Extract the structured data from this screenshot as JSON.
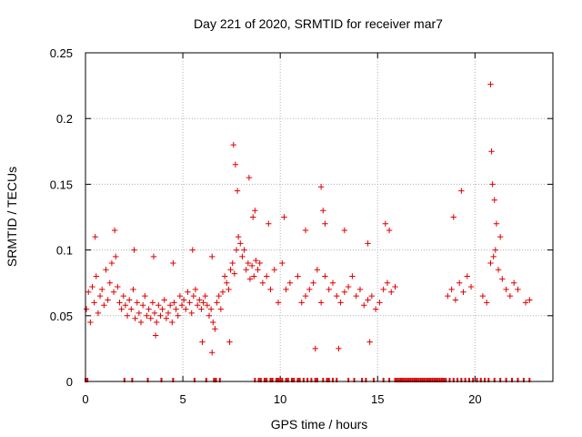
{
  "chart_data": {
    "type": "scatter",
    "title": "Day 221 of 2020, SRMTID for receiver mar7",
    "xlabel": "GPS time / hours",
    "ylabel": "SRMTID / TECUs",
    "xlim": [
      0,
      24
    ],
    "ylim": [
      0,
      0.25
    ],
    "xticks": [
      0,
      5,
      10,
      15,
      20
    ],
    "yticks": [
      0,
      0.05,
      0.1,
      0.15,
      0.2,
      0.25
    ],
    "xtick_labels": [
      "0",
      "5",
      "10",
      "15",
      "20"
    ],
    "ytick_labels": [
      "0",
      "0.05",
      "0.1",
      "0.15",
      "0.2",
      "0.25"
    ],
    "grid": true,
    "marker": "+",
    "color": "#e00000",
    "series": [
      {
        "name": "SRMTID",
        "x": [
          0.05,
          0.15,
          0.25,
          0.35,
          0.45,
          0.55,
          0.65,
          0.75,
          0.85,
          0.95,
          1.05,
          1.15,
          1.25,
          1.35,
          1.45,
          1.55,
          1.65,
          1.75,
          1.85,
          1.95,
          2.05,
          2.15,
          2.25,
          2.35,
          2.45,
          2.55,
          2.65,
          2.75,
          2.85,
          2.95,
          3.05,
          3.15,
          3.25,
          3.35,
          3.45,
          3.55,
          3.65,
          3.75,
          3.85,
          3.95,
          4.05,
          4.15,
          4.25,
          4.35,
          4.45,
          4.55,
          4.65,
          4.75,
          4.85,
          4.95,
          5.05,
          5.15,
          5.25,
          5.35,
          5.45,
          5.55,
          5.65,
          5.75,
          5.85,
          5.95,
          6.05,
          6.15,
          6.25,
          6.35,
          6.45,
          6.55,
          6.65,
          6.75,
          6.85,
          6.95,
          7.05,
          7.15,
          7.25,
          7.35,
          7.45,
          7.55,
          7.65,
          7.75,
          7.85,
          7.95,
          8.05,
          8.15,
          8.25,
          8.35,
          8.45,
          8.55,
          8.65,
          8.75,
          8.85,
          8.95,
          9.1,
          9.3,
          9.5,
          9.7,
          9.9,
          10.1,
          10.3,
          10.5,
          10.9,
          11.1,
          11.3,
          11.5,
          11.7,
          11.9,
          12.1,
          12.3,
          12.5,
          12.7,
          12.9,
          13.1,
          13.3,
          13.5,
          13.7,
          13.9,
          14.1,
          14.3,
          14.5,
          14.7,
          14.9,
          15.1,
          15.3,
          15.5,
          15.7,
          15.9,
          18.6,
          18.8,
          19.0,
          19.2,
          19.4,
          19.6,
          19.8,
          20.4,
          20.6,
          20.8,
          20.95,
          21.05,
          21.2,
          21.4,
          21.6,
          21.8,
          22.0,
          22.2,
          22.6,
          22.8,
          0.5,
          1.5,
          2.5,
          3.5,
          4.5,
          5.5,
          6.5,
          7.6,
          7.7,
          7.8,
          8.4,
          8.6,
          8.7,
          9.4,
          10.2,
          11.3,
          12.1,
          12.2,
          12.3,
          13.3,
          14.5,
          15.4,
          15.6,
          18.9,
          19.3,
          20.8,
          20.85,
          20.9,
          21.0,
          21.1,
          21.3,
          3.6,
          6.0,
          6.5,
          7.4,
          11.8,
          13.0,
          14.6
        ],
        "y": [
          0.055,
          0.068,
          0.045,
          0.072,
          0.06,
          0.08,
          0.052,
          0.065,
          0.07,
          0.058,
          0.085,
          0.062,
          0.075,
          0.09,
          0.068,
          0.095,
          0.072,
          0.06,
          0.055,
          0.065,
          0.058,
          0.05,
          0.062,
          0.055,
          0.07,
          0.048,
          0.06,
          0.052,
          0.045,
          0.058,
          0.065,
          0.05,
          0.055,
          0.048,
          0.06,
          0.052,
          0.045,
          0.058,
          0.05,
          0.055,
          0.062,
          0.048,
          0.052,
          0.058,
          0.045,
          0.06,
          0.055,
          0.05,
          0.065,
          0.058,
          0.062,
          0.055,
          0.068,
          0.06,
          0.052,
          0.065,
          0.07,
          0.058,
          0.062,
          0.055,
          0.06,
          0.065,
          0.058,
          0.05,
          0.055,
          0.045,
          0.04,
          0.06,
          0.065,
          0.055,
          0.068,
          0.08,
          0.075,
          0.07,
          0.085,
          0.09,
          0.082,
          0.1,
          0.11,
          0.105,
          0.095,
          0.1,
          0.085,
          0.09,
          0.078,
          0.088,
          0.08,
          0.092,
          0.085,
          0.09,
          0.075,
          0.08,
          0.07,
          0.085,
          0.06,
          0.09,
          0.07,
          0.075,
          0.08,
          0.06,
          0.065,
          0.07,
          0.075,
          0.085,
          0.06,
          0.08,
          0.07,
          0.075,
          0.065,
          0.06,
          0.068,
          0.072,
          0.08,
          0.065,
          0.07,
          0.058,
          0.062,
          0.065,
          0.055,
          0.06,
          0.07,
          0.075,
          0.068,
          0.072,
          0.065,
          0.07,
          0.062,
          0.075,
          0.068,
          0.08,
          0.072,
          0.065,
          0.06,
          0.09,
          0.095,
          0.1,
          0.085,
          0.078,
          0.07,
          0.065,
          0.075,
          0.07,
          0.06,
          0.062,
          0.11,
          0.115,
          0.1,
          0.095,
          0.09,
          0.1,
          0.095,
          0.18,
          0.165,
          0.145,
          0.155,
          0.125,
          0.13,
          0.12,
          0.125,
          0.115,
          0.148,
          0.13,
          0.12,
          0.115,
          0.105,
          0.12,
          0.115,
          0.125,
          0.145,
          0.226,
          0.175,
          0.15,
          0.138,
          0.12,
          0.11,
          0.035,
          0.03,
          0.022,
          0.03,
          0.025,
          0.025,
          0.03
        ],
        "note": "representative sample of the dense point cloud"
      }
    ],
    "zero_flag_x": [
      0.0,
      0.1,
      2.0,
      2.4,
      3.2,
      3.9,
      4.5,
      5.6,
      6.2,
      6.6,
      6.7,
      6.9,
      8.7,
      8.9,
      9.0,
      9.2,
      9.3,
      9.5,
      9.6,
      9.8,
      9.9,
      10.0,
      10.1,
      10.3,
      10.4,
      10.6,
      10.7,
      10.9,
      11.0,
      11.2,
      11.4,
      11.6,
      11.8,
      11.9,
      12.2,
      12.4,
      12.5,
      12.7,
      12.9,
      13.5,
      13.8,
      14.2,
      14.4,
      14.8,
      15.3,
      15.6,
      15.9,
      16.0,
      16.1,
      16.2,
      16.3,
      16.4,
      16.5,
      16.6,
      16.7,
      16.8,
      16.9,
      17.0,
      17.1,
      17.2,
      17.3,
      17.4,
      17.5,
      17.6,
      17.7,
      17.8,
      17.9,
      18.0,
      18.1,
      18.2,
      18.3,
      18.4,
      18.5,
      18.7,
      18.9,
      19.1,
      19.3,
      19.5,
      19.7,
      19.9,
      20.1,
      20.3,
      20.5,
      20.7,
      21.0,
      21.3,
      21.6,
      21.9,
      22.2,
      22.5,
      22.8
    ]
  }
}
